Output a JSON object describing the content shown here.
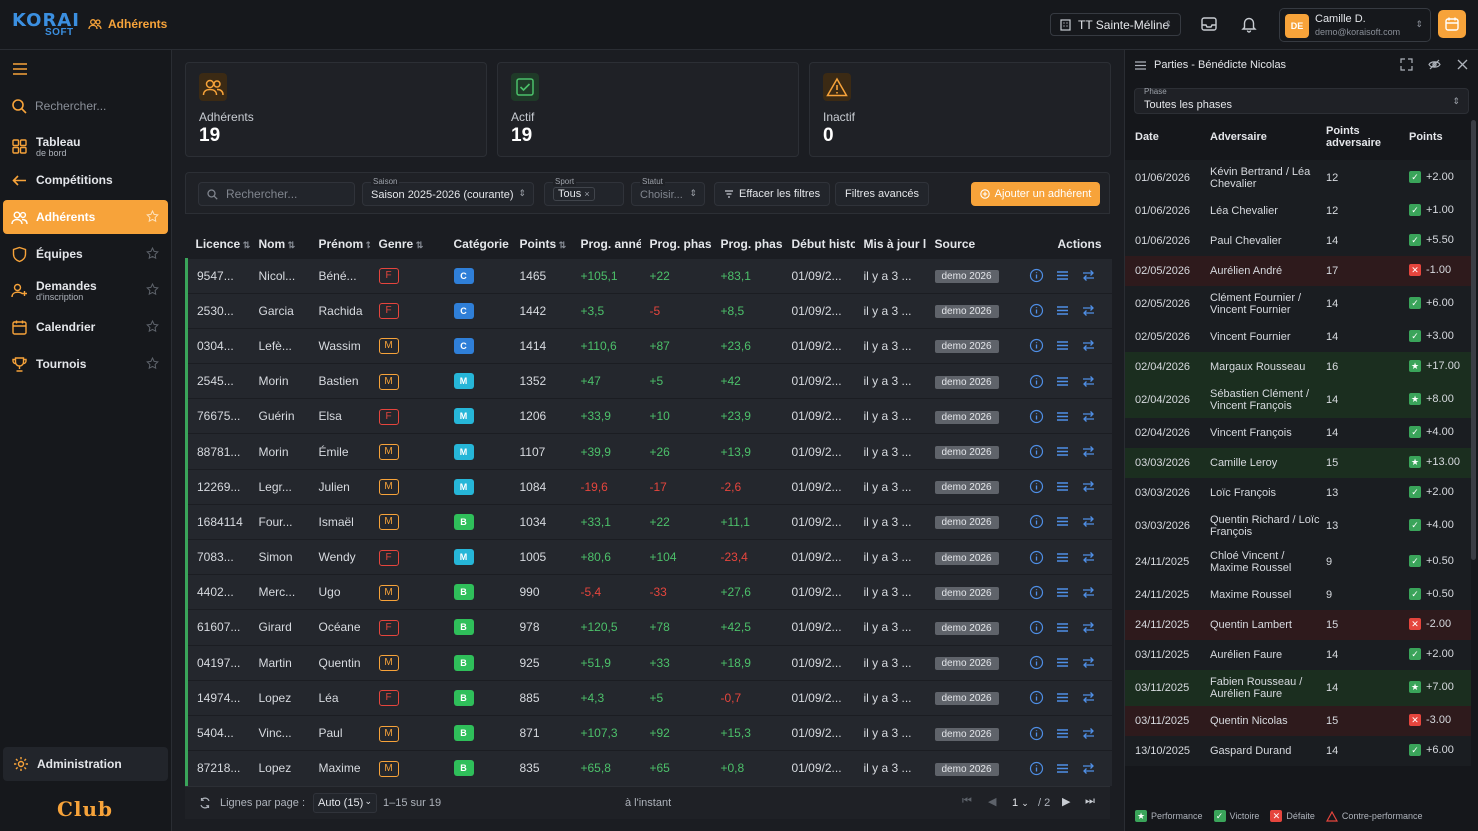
{
  "app": {
    "logo_main": "KORAI",
    "logo_sub": "SOFT",
    "breadcrumb": "Adhérents",
    "club_name": "TT Sainte-Méline",
    "user_initials": "DE",
    "user_name": "Camille D.",
    "user_email": "demo@koraisoft.com"
  },
  "colors": {
    "accent": "#f7a33a",
    "positive": "#4cc06a",
    "negative": "#e5453d",
    "link": "#4f8fe6"
  },
  "sidebar": {
    "search_placeholder": "Rechercher...",
    "items": [
      {
        "label": "Tableau",
        "sub": "de bord",
        "icon": "dashboard-icon"
      },
      {
        "label": "Compétitions",
        "sub": "",
        "icon": "arrow-left-icon"
      },
      {
        "label": "Adhérents",
        "sub": "",
        "icon": "users-icon"
      },
      {
        "label": "Équipes",
        "sub": "",
        "icon": "shield-icon"
      },
      {
        "label": "Demandes",
        "sub": "d'inscription",
        "icon": "user-add-icon"
      },
      {
        "label": "Calendrier",
        "sub": "",
        "icon": "calendar-icon"
      },
      {
        "label": "Tournois",
        "sub": "",
        "icon": "trophy-icon"
      }
    ],
    "admin_label": "Administration",
    "club_label": "Club"
  },
  "stats": [
    {
      "label": "Adhérents",
      "value": "19",
      "icon": "users-icon"
    },
    {
      "label": "Actif",
      "value": "19",
      "icon": "check-icon"
    },
    {
      "label": "Inactif",
      "value": "0",
      "icon": "warning-icon"
    }
  ],
  "filters": {
    "search_placeholder": "Rechercher...",
    "season_caption": "Saison",
    "season_value": "Saison 2025-2026 (courante)",
    "sport_caption": "Sport",
    "sport_value": "Tous",
    "status_caption": "Statut",
    "status_value": "Choisir...",
    "clear_label": "Effacer les filtres",
    "advanced_label": "Filtres avancés",
    "add_label": "Ajouter un adhérent"
  },
  "table": {
    "headers": [
      "Licence",
      "Nom",
      "Prénom",
      "Genre",
      "Catégorie",
      "Points",
      "Prog. année",
      "Prog. phase",
      "Prog. phase",
      "Début histo",
      "Mis à jour le",
      "Source",
      "Actions"
    ],
    "rows": [
      {
        "lic": "9547...",
        "nom": "Nicol...",
        "prenom": "Béné...",
        "genre": "F",
        "cat": "C",
        "pts": "1465",
        "pa": "+105,1",
        "pp1": "+22",
        "pp2": "+83,1",
        "debut": "01/09/2...",
        "maj": "il y a 3 ...",
        "src": "demo 2026"
      },
      {
        "lic": "2530...",
        "nom": "Garcia",
        "prenom": "Rachida",
        "genre": "F",
        "cat": "C",
        "pts": "1442",
        "pa": "+3,5",
        "pp1": "-5",
        "pp2": "+8,5",
        "debut": "01/09/2...",
        "maj": "il y a 3 ...",
        "src": "demo 2026"
      },
      {
        "lic": "0304...",
        "nom": "Lefè...",
        "prenom": "Wassim",
        "genre": "M",
        "cat": "C",
        "pts": "1414",
        "pa": "+110,6",
        "pp1": "+87",
        "pp2": "+23,6",
        "debut": "01/09/2...",
        "maj": "il y a 3 ...",
        "src": "demo 2026"
      },
      {
        "lic": "2545...",
        "nom": "Morin",
        "prenom": "Bastien",
        "genre": "M",
        "cat": "M",
        "pts": "1352",
        "pa": "+47",
        "pp1": "+5",
        "pp2": "+42",
        "debut": "01/09/2...",
        "maj": "il y a 3 ...",
        "src": "demo 2026"
      },
      {
        "lic": "76675...",
        "nom": "Guérin",
        "prenom": "Elsa",
        "genre": "F",
        "cat": "M",
        "pts": "1206",
        "pa": "+33,9",
        "pp1": "+10",
        "pp2": "+23,9",
        "debut": "01/09/2...",
        "maj": "il y a 3 ...",
        "src": "demo 2026"
      },
      {
        "lic": "88781...",
        "nom": "Morin",
        "prenom": "Émile",
        "genre": "M",
        "cat": "M",
        "pts": "1107",
        "pa": "+39,9",
        "pp1": "+26",
        "pp2": "+13,9",
        "debut": "01/09/2...",
        "maj": "il y a 3 ...",
        "src": "demo 2026"
      },
      {
        "lic": "12269...",
        "nom": "Legr...",
        "prenom": "Julien",
        "genre": "M",
        "cat": "M",
        "pts": "1084",
        "pa": "-19,6",
        "pp1": "-17",
        "pp2": "-2,6",
        "debut": "01/09/2...",
        "maj": "il y a 3 ...",
        "src": "demo 2026"
      },
      {
        "lic": "1684114",
        "nom": "Four...",
        "prenom": "Ismaël",
        "genre": "M",
        "cat": "B",
        "pts": "1034",
        "pa": "+33,1",
        "pp1": "+22",
        "pp2": "+11,1",
        "debut": "01/09/2...",
        "maj": "il y a 3 ...",
        "src": "demo 2026"
      },
      {
        "lic": "7083...",
        "nom": "Simon",
        "prenom": "Wendy",
        "genre": "F",
        "cat": "M",
        "pts": "1005",
        "pa": "+80,6",
        "pp1": "+104",
        "pp2": "-23,4",
        "debut": "01/09/2...",
        "maj": "il y a 3 ...",
        "src": "demo 2026"
      },
      {
        "lic": "4402...",
        "nom": "Merc...",
        "prenom": "Ugo",
        "genre": "M",
        "cat": "B",
        "pts": "990",
        "pa": "-5,4",
        "pp1": "-33",
        "pp2": "+27,6",
        "debut": "01/09/2...",
        "maj": "il y a 3 ...",
        "src": "demo 2026"
      },
      {
        "lic": "61607...",
        "nom": "Girard",
        "prenom": "Océane",
        "genre": "F",
        "cat": "B",
        "pts": "978",
        "pa": "+120,5",
        "pp1": "+78",
        "pp2": "+42,5",
        "debut": "01/09/2...",
        "maj": "il y a 3 ...",
        "src": "demo 2026"
      },
      {
        "lic": "04197...",
        "nom": "Martin",
        "prenom": "Quentin",
        "genre": "M",
        "cat": "B",
        "pts": "925",
        "pa": "+51,9",
        "pp1": "+33",
        "pp2": "+18,9",
        "debut": "01/09/2...",
        "maj": "il y a 3 ...",
        "src": "demo 2026"
      },
      {
        "lic": "14974...",
        "nom": "Lopez",
        "prenom": "Léa",
        "genre": "F",
        "cat": "B",
        "pts": "885",
        "pa": "+4,3",
        "pp1": "+5",
        "pp2": "-0,7",
        "debut": "01/09/2...",
        "maj": "il y a 3 ...",
        "src": "demo 2026"
      },
      {
        "lic": "5404...",
        "nom": "Vinc...",
        "prenom": "Paul",
        "genre": "M",
        "cat": "B",
        "pts": "871",
        "pa": "+107,3",
        "pp1": "+92",
        "pp2": "+15,3",
        "debut": "01/09/2...",
        "maj": "il y a 3 ...",
        "src": "demo 2026"
      },
      {
        "lic": "87218...",
        "nom": "Lopez",
        "prenom": "Maxime",
        "genre": "M",
        "cat": "B",
        "pts": "835",
        "pa": "+65,8",
        "pp1": "+65",
        "pp2": "+0,8",
        "debut": "01/09/2...",
        "maj": "il y a 3 ...",
        "src": "demo 2026"
      }
    ],
    "category_colors": {
      "C": "#2f7fd8",
      "M": "#26b6d8",
      "B": "#2fbf5a"
    }
  },
  "pager": {
    "rows_label": "Lignes par page :",
    "rows_value": "Auto (15)",
    "range": "1–15 sur 19",
    "updated": "à l'instant",
    "page_value": "1",
    "page_total": "/ 2"
  },
  "panel": {
    "title": "Parties - Bénédicte Nicolas",
    "phase_caption": "Phase",
    "phase_value": "Toutes les phases",
    "headers": {
      "date": "Date",
      "opp": "Adversaire",
      "opp_pts": "Points adversaire",
      "pts": "Points"
    },
    "rows": [
      {
        "date": "01/06/2026",
        "opp": "Kévin Bertrand / Léa Chevalier",
        "opp_pts": "12",
        "pts": "+2.00",
        "type": "victory"
      },
      {
        "date": "01/06/2026",
        "opp": "Léa Chevalier",
        "opp_pts": "12",
        "pts": "+1.00",
        "type": "victory"
      },
      {
        "date": "01/06/2026",
        "opp": "Paul Chevalier",
        "opp_pts": "14",
        "pts": "+5.50",
        "type": "victory"
      },
      {
        "date": "02/05/2026",
        "opp": "Aurélien André",
        "opp_pts": "17",
        "pts": "-1.00",
        "type": "defeat"
      },
      {
        "date": "02/05/2026",
        "opp": "Clément Fournier / Vincent Fournier",
        "opp_pts": "14",
        "pts": "+6.00",
        "type": "victory"
      },
      {
        "date": "02/05/2026",
        "opp": "Vincent Fournier",
        "opp_pts": "14",
        "pts": "+3.00",
        "type": "victory"
      },
      {
        "date": "02/04/2026",
        "opp": "Margaux Rousseau",
        "opp_pts": "16",
        "pts": "+17.00",
        "type": "performance"
      },
      {
        "date": "02/04/2026",
        "opp": "Sébastien Clément / Vincent François",
        "opp_pts": "14",
        "pts": "+8.00",
        "type": "performance"
      },
      {
        "date": "02/04/2026",
        "opp": "Vincent François",
        "opp_pts": "14",
        "pts": "+4.00",
        "type": "victory"
      },
      {
        "date": "03/03/2026",
        "opp": "Camille Leroy",
        "opp_pts": "15",
        "pts": "+13.00",
        "type": "performance"
      },
      {
        "date": "03/03/2026",
        "opp": "Loïc François",
        "opp_pts": "13",
        "pts": "+2.00",
        "type": "victory"
      },
      {
        "date": "03/03/2026",
        "opp": "Quentin Richard / Loïc François",
        "opp_pts": "13",
        "pts": "+4.00",
        "type": "victory"
      },
      {
        "date": "24/11/2025",
        "opp": "Chloé Vincent / Maxime Roussel",
        "opp_pts": "9",
        "pts": "+0.50",
        "type": "victory"
      },
      {
        "date": "24/11/2025",
        "opp": "Maxime Roussel",
        "opp_pts": "9",
        "pts": "+0.50",
        "type": "victory"
      },
      {
        "date": "24/11/2025",
        "opp": "Quentin Lambert",
        "opp_pts": "15",
        "pts": "-2.00",
        "type": "defeat"
      },
      {
        "date": "03/11/2025",
        "opp": "Aurélien Faure",
        "opp_pts": "14",
        "pts": "+2.00",
        "type": "victory"
      },
      {
        "date": "03/11/2025",
        "opp": "Fabien Rousseau / Aurélien Faure",
        "opp_pts": "14",
        "pts": "+7.00",
        "type": "performance"
      },
      {
        "date": "03/11/2025",
        "opp": "Quentin Nicolas",
        "opp_pts": "15",
        "pts": "-3.00",
        "type": "defeat"
      },
      {
        "date": "13/10/2025",
        "opp": "Gaspard Durand",
        "opp_pts": "14",
        "pts": "+6.00",
        "type": "victory"
      }
    ],
    "legend": [
      "Performance",
      "Victoire",
      "Défaite",
      "Contre-performance"
    ]
  }
}
